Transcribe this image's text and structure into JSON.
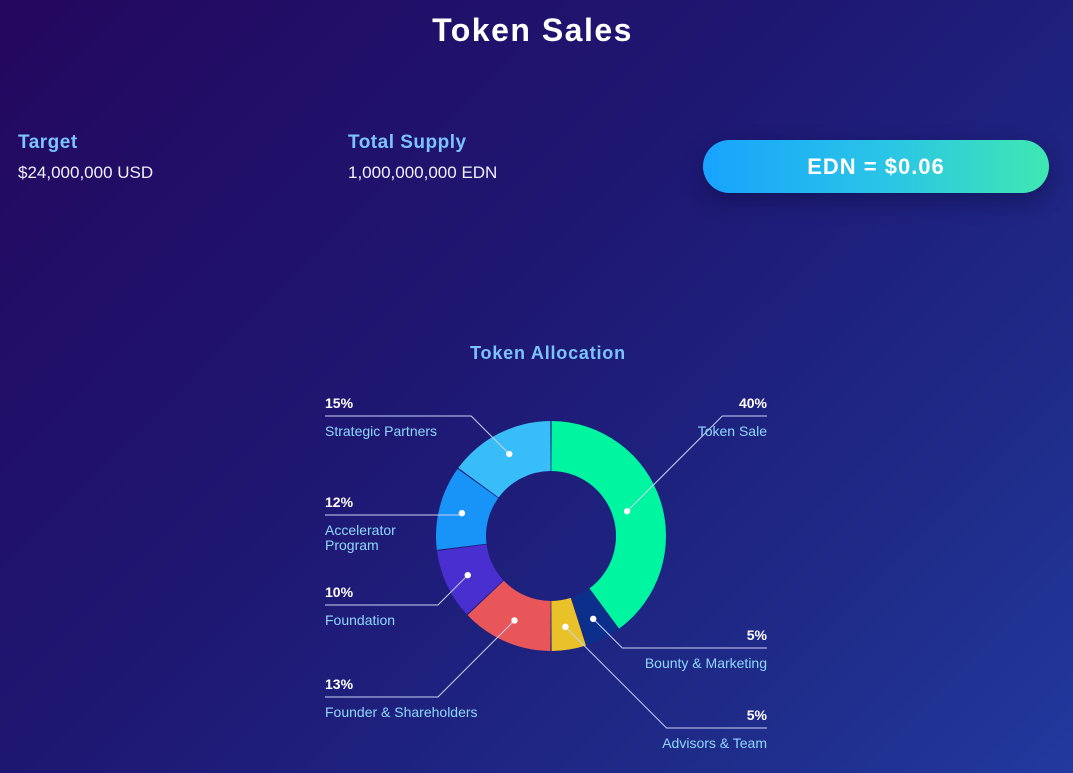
{
  "page": {
    "title": "Token Sales"
  },
  "stats": {
    "target": {
      "label": "Target",
      "value": "$24,000,000 USD"
    },
    "supply": {
      "label": "Total Supply",
      "value": "1,000,000,000 EDN"
    }
  },
  "price_button": {
    "label": "EDN = $0.06"
  },
  "chart_data": {
    "type": "pie",
    "title": "Token Allocation",
    "donut": true,
    "slices": [
      {
        "label": "Token Sale",
        "value": 40,
        "percent_label": "40%",
        "color": "#00f5a0"
      },
      {
        "label": "Bounty & Marketing",
        "value": 5,
        "percent_label": "5%",
        "color": "#0b2f8a"
      },
      {
        "label": "Advisors & Team",
        "value": 5,
        "percent_label": "5%",
        "color": "#e9c22a"
      },
      {
        "label": "Founder & Shareholders",
        "value": 13,
        "percent_label": "13%",
        "color": "#e95659"
      },
      {
        "label": "Foundation",
        "value": 10,
        "percent_label": "10%",
        "color": "#4a2fd0"
      },
      {
        "label": "Accelerator Program",
        "value": 12,
        "percent_label": "12%",
        "color": "#1893f7"
      },
      {
        "label": "Strategic Partners",
        "value": 15,
        "percent_label": "15%",
        "color": "#38bdf8"
      }
    ],
    "legend_colors": {
      "text": "#8fd8ff",
      "percent": "#ffffff",
      "leader_line": "#c9d2f5"
    }
  }
}
